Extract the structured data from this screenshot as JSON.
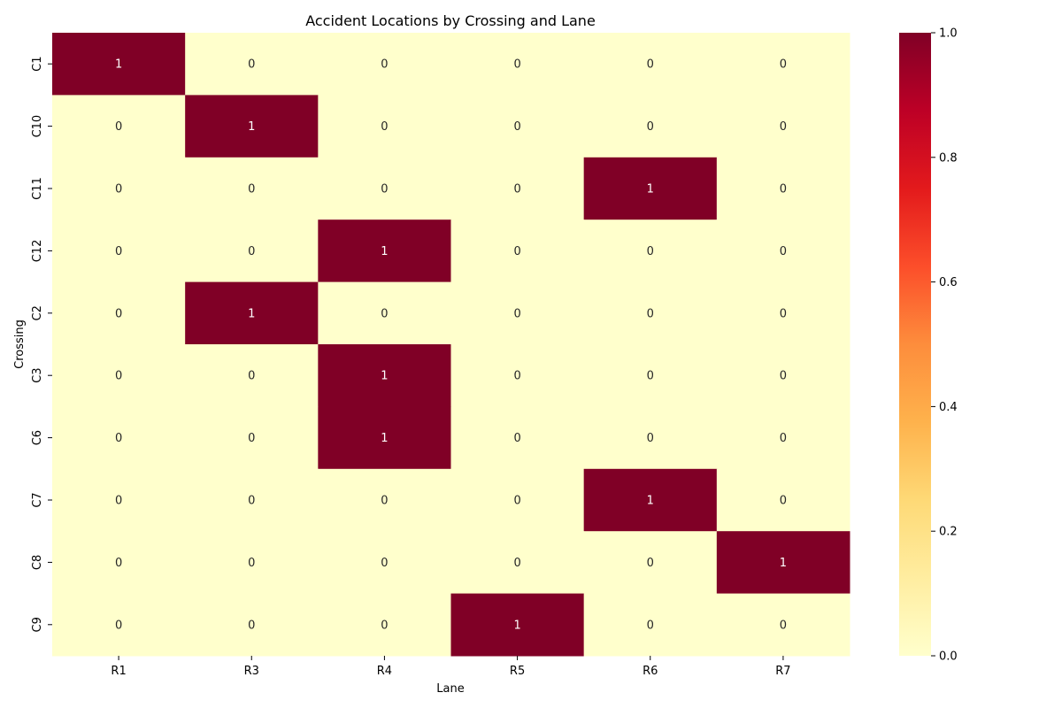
{
  "chart_data": {
    "type": "heatmap",
    "title": "Accident Locations by Crossing and Lane",
    "xlabel": "Lane",
    "ylabel": "Crossing",
    "x_categories": [
      "R1",
      "R3",
      "R4",
      "R5",
      "R6",
      "R7"
    ],
    "y_categories": [
      "C1",
      "C10",
      "C11",
      "C12",
      "C2",
      "C3",
      "C6",
      "C7",
      "C8",
      "C9"
    ],
    "values": [
      [
        1,
        0,
        0,
        0,
        0,
        0
      ],
      [
        0,
        1,
        0,
        0,
        0,
        0
      ],
      [
        0,
        0,
        0,
        0,
        1,
        0
      ],
      [
        0,
        0,
        1,
        0,
        0,
        0
      ],
      [
        0,
        1,
        0,
        0,
        0,
        0
      ],
      [
        0,
        0,
        1,
        0,
        0,
        0
      ],
      [
        0,
        0,
        1,
        0,
        0,
        0
      ],
      [
        0,
        0,
        0,
        0,
        1,
        0
      ],
      [
        0,
        0,
        0,
        0,
        0,
        1
      ],
      [
        0,
        0,
        0,
        1,
        0,
        0
      ]
    ],
    "color_range": [
      0.0,
      1.0
    ],
    "colormap": "YlOrRd",
    "colorbar_ticks": [
      "0.0",
      "0.2",
      "0.4",
      "0.6",
      "0.8",
      "1.0"
    ],
    "annotated": true
  }
}
